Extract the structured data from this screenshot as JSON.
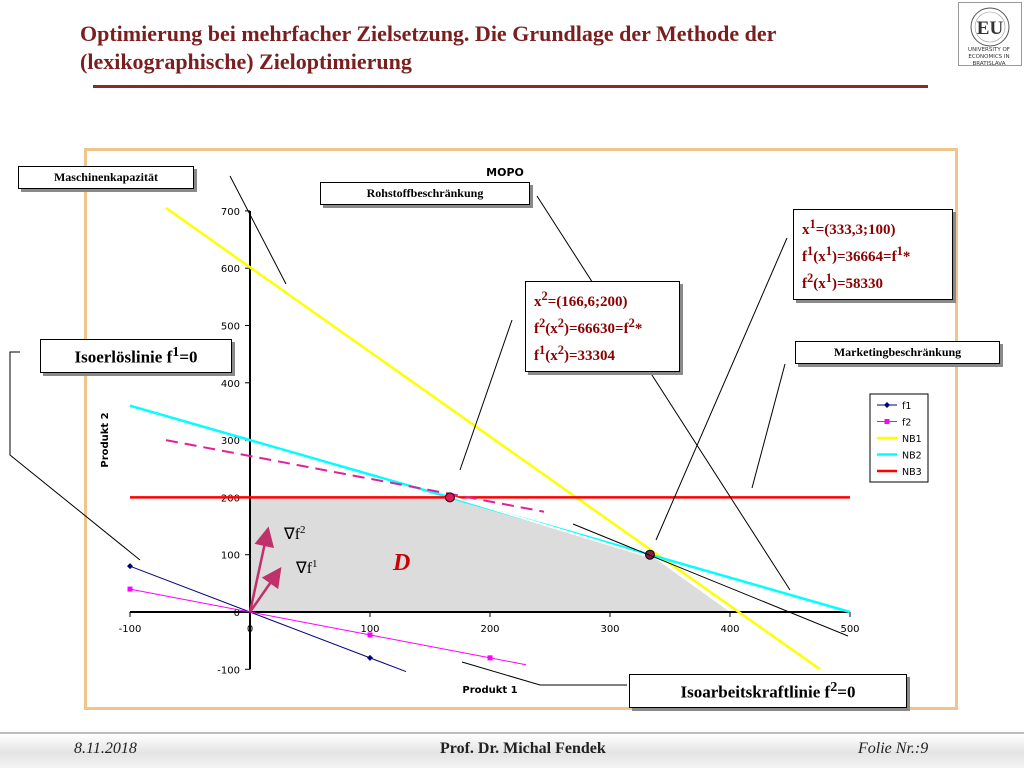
{
  "slide": {
    "title": "Optimierung bei mehrfacher Zielsetzung. Die Grundlage der Methode der (lexikographische) Zieloptimierung",
    "logo_text": "UNIVERSITY OF ECONOMICS IN BRATISLAVA",
    "logo_letters": "EU",
    "colors": {
      "title": "#7a1f1f",
      "frame": "#f0c48a",
      "info_text": "#8b0000"
    }
  },
  "labels": {
    "maschinen": "Maschinenkapazität",
    "rohstoff": "Rohstoffbeschränkung",
    "marketing": "Marketingbeschränkung",
    "isoerloes_pre": "Isoerlöslinie f",
    "isoerloes_sup": "1",
    "isoerloes_post": "=0",
    "isoarbeit_pre": "Isoarbeitskraftlinie f",
    "isoarbeit_sup": "2",
    "isoarbeit_post": "=0"
  },
  "info_x2": {
    "line1": {
      "a": "x",
      "b": "2",
      "c": "=(166,6;200)"
    },
    "line2": {
      "a": "f",
      "b": "2",
      "c": "(x",
      "d": "2",
      "e": ")=66630=f",
      "f": "2",
      "g": "*"
    },
    "line3": {
      "a": "f",
      "b": "1",
      "c": "(x",
      "d": "2",
      "e": ")=33304"
    }
  },
  "info_x1": {
    "line1": {
      "a": "x",
      "b": "1",
      "c": "=(333,3;100)"
    },
    "line2": {
      "a": "f",
      "b": "1",
      "c": "(x",
      "d": "1",
      "e": ")=36664=f",
      "f": "1",
      "g": "*"
    },
    "line3": {
      "a": "f",
      "b": "2",
      "c": "(x",
      "d": "1",
      "e": ")=58330"
    }
  },
  "chart_data": {
    "type": "line",
    "title": "MOPO",
    "xlabel": "Produkt 1",
    "ylabel": "Produkt 2",
    "xlim": [
      -100,
      500
    ],
    "ylim": [
      -100,
      700
    ],
    "xticks": [
      -100,
      0,
      100,
      200,
      300,
      400,
      500
    ],
    "yticks": [
      -100,
      0,
      100,
      200,
      300,
      400,
      500,
      600,
      700
    ],
    "legend_position": "right",
    "series": [
      {
        "name": "f1",
        "color": "#000080",
        "marker": "diamond",
        "points": [
          [
            -100,
            80
          ],
          [
            0,
            0
          ],
          [
            100,
            -80
          ]
        ]
      },
      {
        "name": "f2",
        "color": "#ff00ff",
        "marker": "square",
        "points": [
          [
            -100,
            40
          ],
          [
            0,
            0
          ],
          [
            100,
            -40
          ],
          [
            200,
            -80
          ]
        ]
      },
      {
        "name": "NB1",
        "color": "#ffff00",
        "points": [
          [
            -70,
            705
          ],
          [
            475,
            -100
          ]
        ]
      },
      {
        "name": "NB2",
        "color": "#00ffff",
        "points": [
          [
            -100,
            360
          ],
          [
            500,
            0
          ]
        ]
      },
      {
        "name": "NB3",
        "color": "#ff0000",
        "points": [
          [
            -100,
            200
          ],
          [
            500,
            200
          ]
        ]
      }
    ],
    "feasible_region": [
      [
        0,
        0
      ],
      [
        0,
        200
      ],
      [
        166.6,
        200
      ],
      [
        333.3,
        100
      ],
      [
        400,
        0
      ]
    ],
    "region_label": "D",
    "optimal_points": [
      {
        "x": 166.6,
        "y": 200
      },
      {
        "x": 333.3,
        "y": 100
      }
    ],
    "dashed_isoline_f2": [
      [
        -70,
        300
      ],
      [
        245,
        175
      ]
    ],
    "isoline_f1_segment": [
      [
        170,
        200
      ],
      [
        335,
        95
      ]
    ],
    "gradients": [
      {
        "name": "f2",
        "label": "∇f",
        "sup": "2",
        "to": [
          15,
          145
        ]
      },
      {
        "name": "f1",
        "label": "∇f",
        "sup": "1",
        "to": [
          25,
          75
        ]
      }
    ]
  },
  "footer": {
    "date": "8.11.2018",
    "author": "Prof. Dr. Michal Fendek",
    "page_label": "Folie Nr.:",
    "page_num": "9"
  }
}
